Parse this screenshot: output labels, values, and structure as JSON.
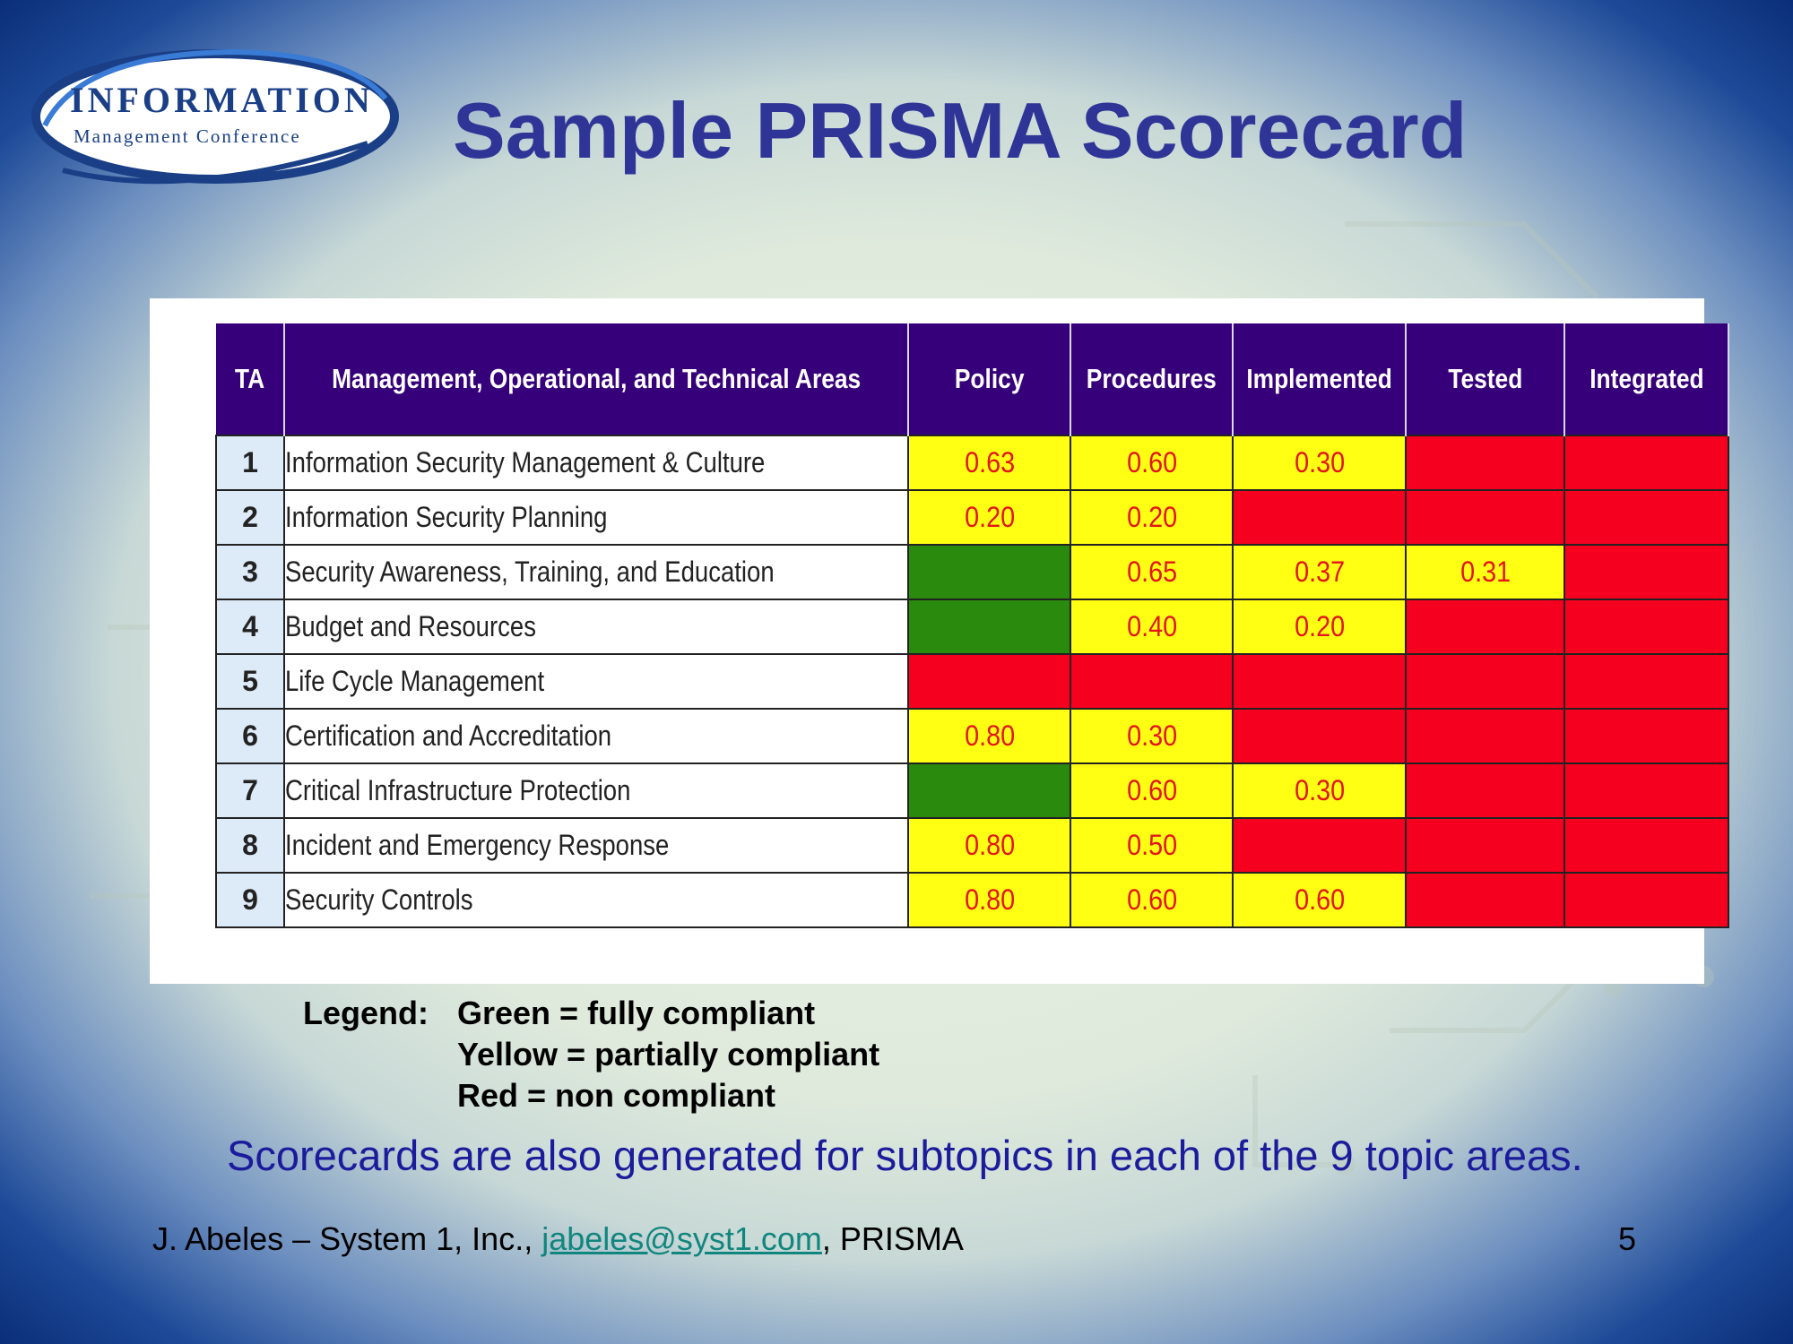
{
  "slide": {
    "title": "Sample PRISMA Scorecard",
    "logo": {
      "line1": "INFORMATION",
      "line2": "Management Conference"
    },
    "table": {
      "headers": [
        "TA",
        "Management, Operational, and Technical Areas",
        "Policy",
        "Procedures",
        "Implemented",
        "Tested",
        "Integrated"
      ],
      "rows": [
        {
          "ta": "1",
          "area": "Information Security Management & Culture",
          "cells": [
            {
              "status": "yellow",
              "value": "0.63"
            },
            {
              "status": "yellow",
              "value": "0.60"
            },
            {
              "status": "yellow",
              "value": "0.30"
            },
            {
              "status": "red",
              "value": ""
            },
            {
              "status": "red",
              "value": ""
            }
          ]
        },
        {
          "ta": "2",
          "area": "Information Security Planning",
          "cells": [
            {
              "status": "yellow",
              "value": "0.20"
            },
            {
              "status": "yellow",
              "value": "0.20"
            },
            {
              "status": "red",
              "value": ""
            },
            {
              "status": "red",
              "value": ""
            },
            {
              "status": "red",
              "value": ""
            }
          ]
        },
        {
          "ta": "3",
          "area": "Security Awareness, Training, and Education",
          "cells": [
            {
              "status": "green",
              "value": ""
            },
            {
              "status": "yellow",
              "value": "0.65"
            },
            {
              "status": "yellow",
              "value": "0.37"
            },
            {
              "status": "yellow",
              "value": "0.31"
            },
            {
              "status": "red",
              "value": ""
            }
          ]
        },
        {
          "ta": "4",
          "area": "Budget and Resources",
          "cells": [
            {
              "status": "green",
              "value": ""
            },
            {
              "status": "yellow",
              "value": "0.40"
            },
            {
              "status": "yellow",
              "value": "0.20"
            },
            {
              "status": "red",
              "value": ""
            },
            {
              "status": "red",
              "value": ""
            }
          ]
        },
        {
          "ta": "5",
          "area": "Life Cycle Management",
          "cells": [
            {
              "status": "red",
              "value": ""
            },
            {
              "status": "red",
              "value": ""
            },
            {
              "status": "red",
              "value": ""
            },
            {
              "status": "red",
              "value": ""
            },
            {
              "status": "red",
              "value": ""
            }
          ]
        },
        {
          "ta": "6",
          "area": "Certification and Accreditation",
          "cells": [
            {
              "status": "yellow",
              "value": "0.80"
            },
            {
              "status": "yellow",
              "value": "0.30"
            },
            {
              "status": "red",
              "value": ""
            },
            {
              "status": "red",
              "value": ""
            },
            {
              "status": "red",
              "value": ""
            }
          ]
        },
        {
          "ta": "7",
          "area": "Critical Infrastructure Protection",
          "cells": [
            {
              "status": "green",
              "value": ""
            },
            {
              "status": "yellow",
              "value": "0.60"
            },
            {
              "status": "yellow",
              "value": "0.30"
            },
            {
              "status": "red",
              "value": ""
            },
            {
              "status": "red",
              "value": ""
            }
          ]
        },
        {
          "ta": "8",
          "area": "Incident and Emergency Response",
          "cells": [
            {
              "status": "yellow",
              "value": "0.80"
            },
            {
              "status": "yellow",
              "value": "0.50"
            },
            {
              "status": "red",
              "value": ""
            },
            {
              "status": "red",
              "value": ""
            },
            {
              "status": "red",
              "value": ""
            }
          ]
        },
        {
          "ta": "9",
          "area": "Security Controls",
          "cells": [
            {
              "status": "yellow",
              "value": "0.80"
            },
            {
              "status": "yellow",
              "value": "0.60"
            },
            {
              "status": "yellow",
              "value": "0.60"
            },
            {
              "status": "red",
              "value": ""
            },
            {
              "status": "red",
              "value": ""
            }
          ]
        }
      ]
    },
    "legend": {
      "label": "Legend:",
      "items": [
        "Green = fully compliant",
        "Yellow = partially compliant",
        "Red = non compliant"
      ]
    },
    "note": "Scorecards are also generated for subtopics in each of the 9 topic areas.",
    "footer": {
      "prefix": "J. Abeles – System 1, Inc., ",
      "email": "jabeles@syst1.com",
      "suffix": ", PRISMA",
      "page": "5"
    },
    "colors": {
      "green": "#2a8a0e",
      "yellow": "#ffff14",
      "red": "#f6001f",
      "header": "#36007a",
      "title": "#2f3597"
    }
  }
}
